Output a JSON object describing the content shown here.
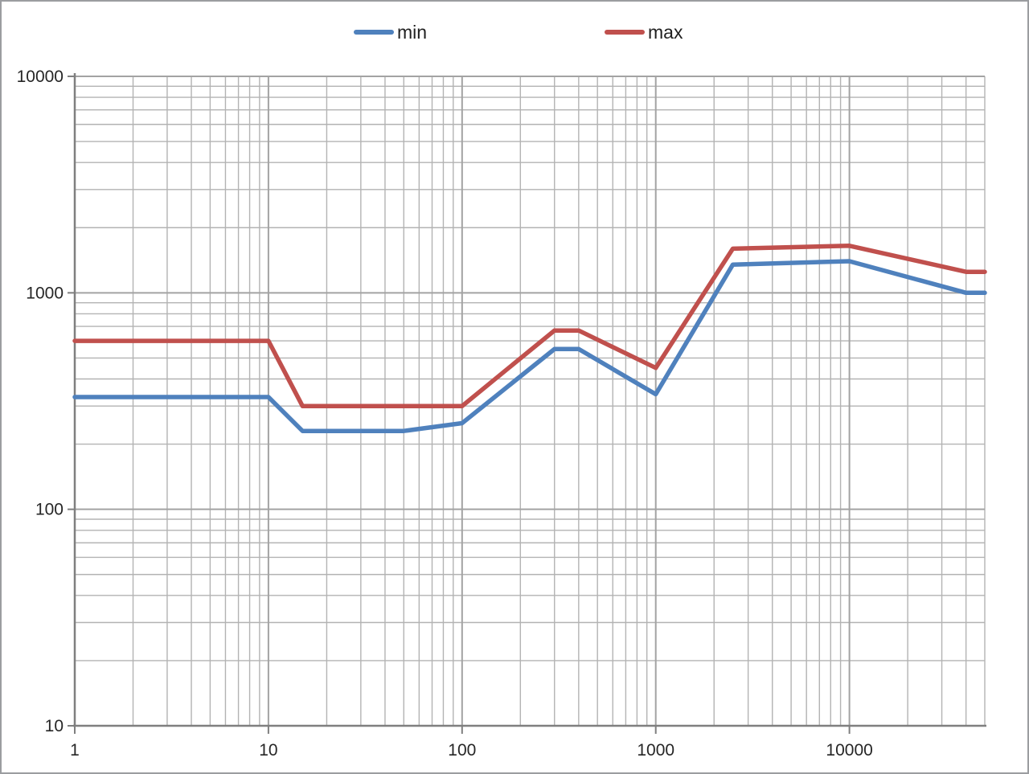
{
  "chart_data": {
    "type": "line",
    "title": "",
    "xlabel": "",
    "ylabel": "",
    "x_scale": "log",
    "y_scale": "log",
    "xlim": [
      1,
      50000
    ],
    "ylim": [
      10,
      10000
    ],
    "x_ticks": [
      "1",
      "10",
      "100",
      "1000",
      "10000"
    ],
    "x_tick_values": [
      1,
      10,
      100,
      1000,
      10000
    ],
    "y_ticks": [
      "10",
      "100",
      "1000",
      "10000"
    ],
    "y_tick_values": [
      10,
      100,
      1000,
      10000
    ],
    "grid": "major and minor logarithmic gridlines on both axes",
    "legend_position": "top-center",
    "series": [
      {
        "name": "min",
        "color": "#4F81BD",
        "points": [
          [
            1,
            330
          ],
          [
            10,
            330
          ],
          [
            15,
            230
          ],
          [
            50,
            230
          ],
          [
            100,
            250
          ],
          [
            300,
            550
          ],
          [
            400,
            550
          ],
          [
            1000,
            340
          ],
          [
            2500,
            1350
          ],
          [
            10000,
            1400
          ],
          [
            40000,
            1000
          ],
          [
            50000,
            1000
          ]
        ]
      },
      {
        "name": "max",
        "color": "#C0504D",
        "points": [
          [
            1,
            600
          ],
          [
            10,
            600
          ],
          [
            15,
            300
          ],
          [
            100,
            300
          ],
          [
            300,
            670
          ],
          [
            400,
            670
          ],
          [
            1000,
            450
          ],
          [
            2500,
            1600
          ],
          [
            10000,
            1650
          ],
          [
            40000,
            1250
          ],
          [
            50000,
            1250
          ]
        ]
      }
    ]
  },
  "colors": {
    "minor_gridline": "#B3B3B3",
    "major_gridline": "#A3A3A3",
    "axis": "#7F7F7F",
    "tick_label": "#262626",
    "background": "#FFFFFF"
  }
}
